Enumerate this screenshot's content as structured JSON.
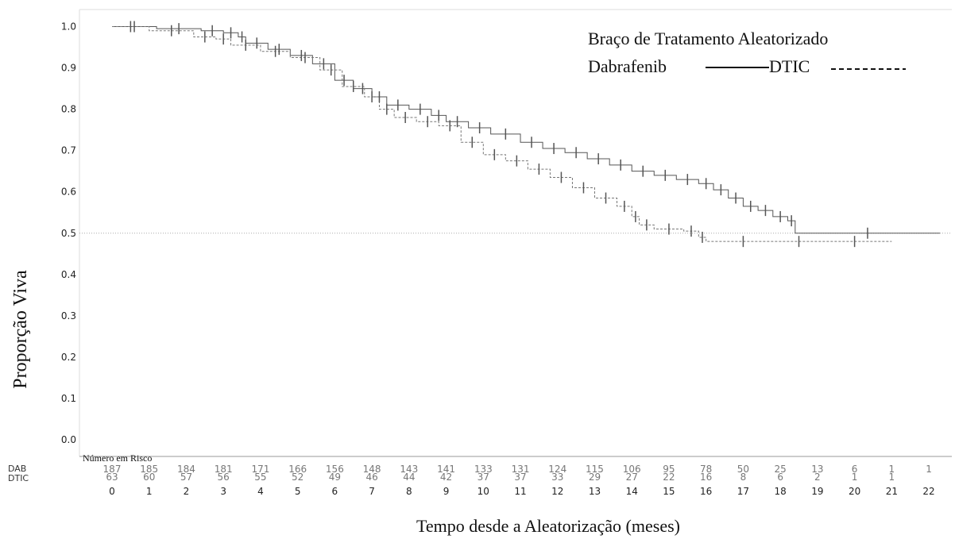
{
  "chart_data": {
    "type": "line",
    "xlabel": "Tempo desde a Aleatorização (meses)",
    "ylabel": "Proporção Viva",
    "xlim": [
      0,
      22
    ],
    "ylim": [
      0,
      1
    ],
    "x_ticks": [
      "0",
      "1",
      "2",
      "3",
      "4",
      "5",
      "6",
      "7",
      "8",
      "9",
      "10",
      "11",
      "12",
      "13",
      "14",
      "15",
      "16",
      "17",
      "18",
      "19",
      "20",
      "21",
      "22"
    ],
    "y_ticks": [
      "0.0",
      "0.1",
      "0.2",
      "0.3",
      "0.4",
      "0.5",
      "0.6",
      "0.7",
      "0.8",
      "0.9",
      "1.0"
    ],
    "reference_line_y": 0.5,
    "legend": {
      "title": "Braço de Tratamento Aleatorizado",
      "entries": [
        {
          "label": "Dabrafenib",
          "style": "solid"
        },
        {
          "label": "DTIC",
          "style": "dashed"
        }
      ]
    },
    "series": [
      {
        "name": "Dabrafenib",
        "style": "solid",
        "x": [
          0,
          1.2,
          2.4,
          3.0,
          3.4,
          3.6,
          4.2,
          4.8,
          5.4,
          6.0,
          6.5,
          7.0,
          7.4,
          8.0,
          8.6,
          9.0,
          9.6,
          10.2,
          11.0,
          11.6,
          12.2,
          12.8,
          13.4,
          14.0,
          14.6,
          15.2,
          15.8,
          16.2,
          16.6,
          17.0,
          17.4,
          17.8,
          18.2,
          18.4,
          22.3
        ],
        "y": [
          1.0,
          0.995,
          0.99,
          0.985,
          0.975,
          0.96,
          0.945,
          0.93,
          0.91,
          0.87,
          0.85,
          0.83,
          0.81,
          0.8,
          0.785,
          0.77,
          0.755,
          0.74,
          0.72,
          0.705,
          0.695,
          0.68,
          0.665,
          0.65,
          0.64,
          0.63,
          0.62,
          0.605,
          0.585,
          0.565,
          0.555,
          0.54,
          0.53,
          0.5,
          0.5
        ]
      },
      {
        "name": "DTIC",
        "style": "dashed",
        "x": [
          0,
          1.0,
          2.2,
          2.8,
          3.2,
          4.0,
          4.8,
          5.6,
          6.2,
          6.8,
          7.2,
          7.6,
          8.2,
          8.8,
          9.4,
          10.0,
          10.6,
          11.2,
          11.8,
          12.4,
          13.0,
          13.6,
          14.0,
          14.2,
          14.6,
          15.4,
          15.8,
          16.0,
          18.0,
          19.0,
          21.0
        ],
        "y": [
          1.0,
          0.99,
          0.975,
          0.97,
          0.955,
          0.94,
          0.925,
          0.895,
          0.855,
          0.83,
          0.8,
          0.78,
          0.77,
          0.76,
          0.72,
          0.69,
          0.675,
          0.655,
          0.635,
          0.61,
          0.585,
          0.565,
          0.54,
          0.52,
          0.51,
          0.505,
          0.49,
          0.48,
          0.48,
          0.48,
          0.48
        ]
      }
    ],
    "risk_table": {
      "title": "Número em Risco",
      "rows": [
        {
          "label": "DAB",
          "values": [
            "187",
            "185",
            "184",
            "181",
            "171",
            "166",
            "156",
            "148",
            "143",
            "141",
            "133",
            "131",
            "124",
            "115",
            "106",
            "95",
            "78",
            "50",
            "25",
            "13",
            "6",
            "1",
            "1"
          ]
        },
        {
          "label": "DTIC",
          "values": [
            "63",
            "60",
            "57",
            "56",
            "55",
            "52",
            "49",
            "46",
            "44",
            "42",
            "37",
            "37",
            "33",
            "29",
            "27",
            "22",
            "16",
            "8",
            "6",
            "2",
            "1",
            "1",
            ""
          ]
        }
      ]
    }
  }
}
